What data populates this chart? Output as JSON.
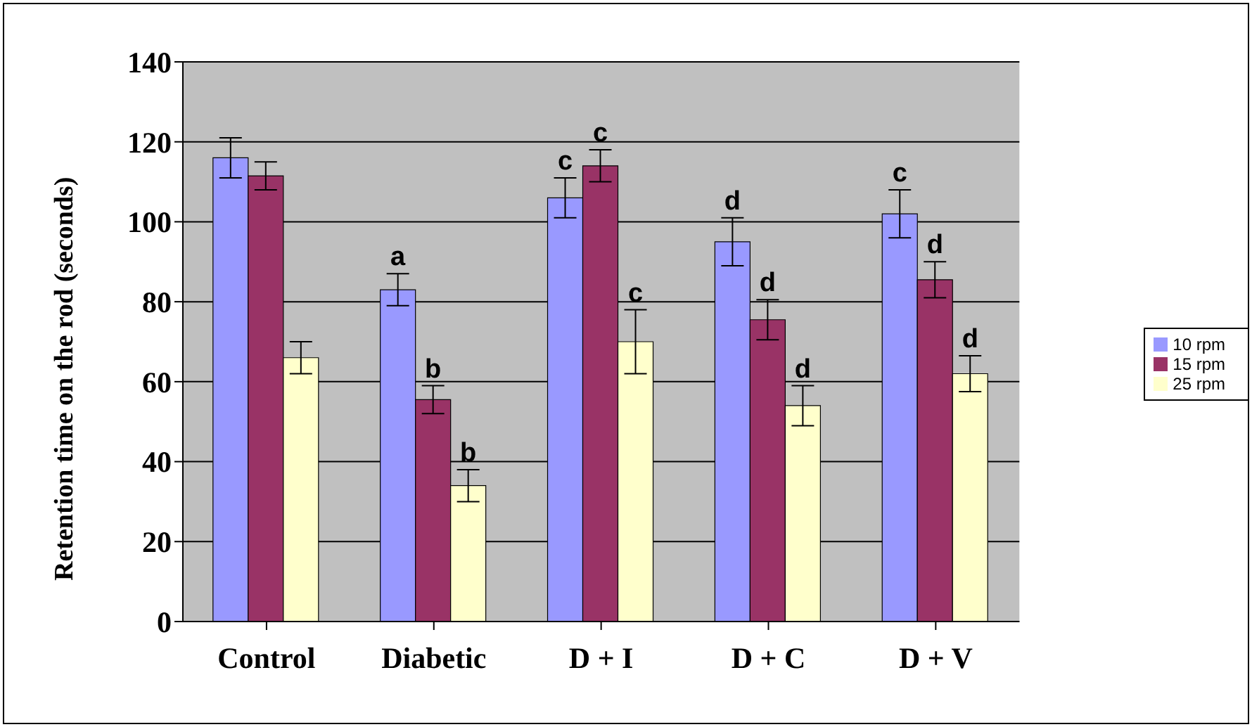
{
  "chart_data": {
    "type": "bar",
    "ylabel": "Retention time on the rod (seconds)",
    "categories": [
      "Control",
      "Diabetic",
      "D + I",
      "D + C",
      "D + V"
    ],
    "ylim": [
      0,
      140
    ],
    "yticks": [
      0,
      20,
      40,
      60,
      80,
      100,
      120,
      140
    ],
    "grid": "y",
    "legend": "right",
    "series": [
      {
        "name": "10 rpm",
        "color": "#9999ff",
        "values": [
          116,
          83,
          106,
          95,
          102
        ],
        "errors": [
          5,
          4,
          5,
          6,
          6
        ],
        "value_labels": [
          null,
          "a",
          "c",
          "d",
          "c"
        ]
      },
      {
        "name": "15 rpm",
        "color": "#993366",
        "values": [
          111.5,
          55.5,
          114,
          75.5,
          85.5
        ],
        "errors": [
          3.5,
          3.5,
          4,
          5,
          4.5
        ],
        "value_labels": [
          null,
          "b",
          "c",
          "d",
          "d"
        ]
      },
      {
        "name": "25 rpm",
        "color": "#ffffcc",
        "values": [
          66,
          34,
          70,
          54,
          62
        ],
        "errors": [
          4,
          4,
          8,
          5,
          4.5
        ],
        "value_labels": [
          null,
          "b",
          "c",
          "d",
          "d"
        ]
      }
    ]
  }
}
